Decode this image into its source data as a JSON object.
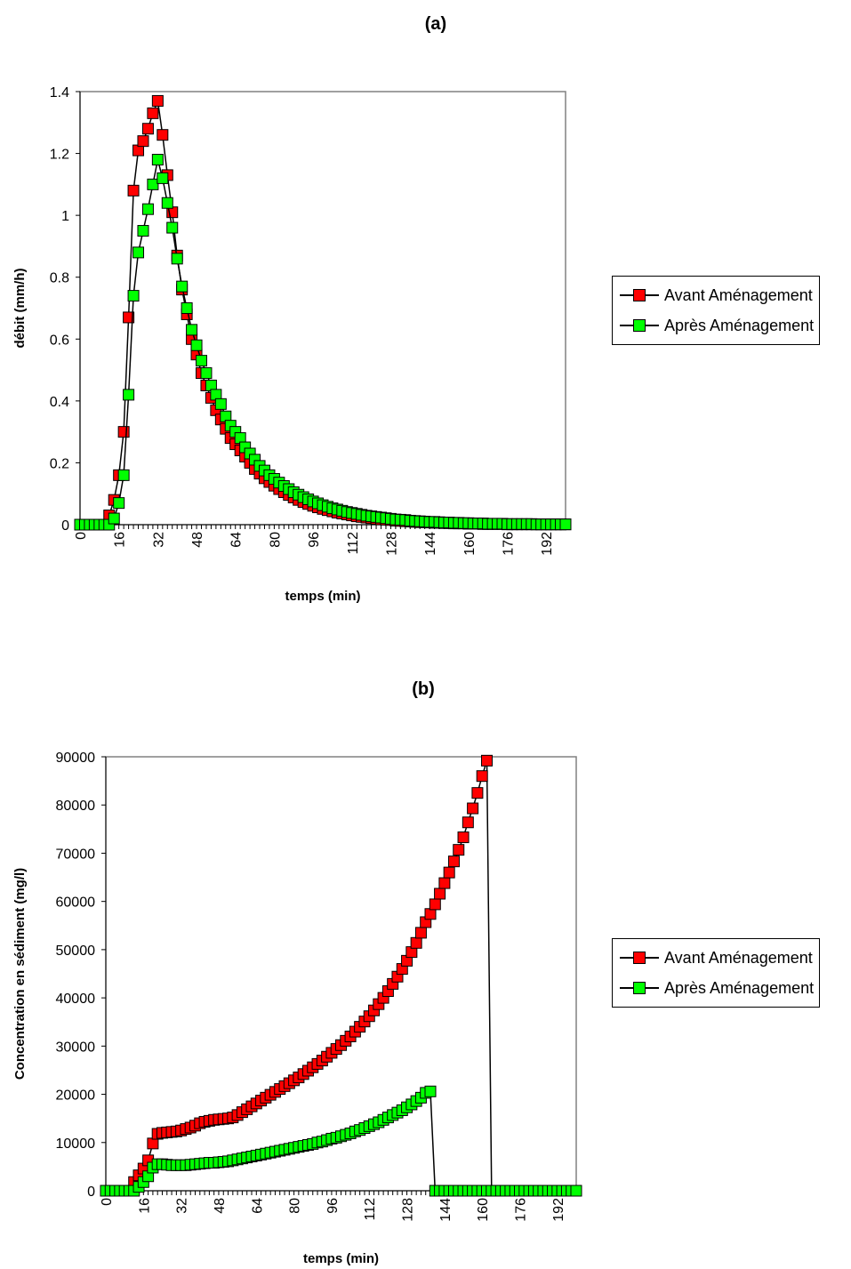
{
  "chart_data": [
    {
      "type": "line",
      "title": "(a)",
      "xlabel": "temps (min)",
      "ylabel": "débit (mm/h)",
      "xlim": [
        0,
        200
      ],
      "ylim": [
        0,
        1.4
      ],
      "xticks": [
        "0",
        "16",
        "32",
        "48",
        "64",
        "80",
        "96",
        "112",
        "128",
        "144",
        "160",
        "176",
        "192"
      ],
      "yticks": [
        "0",
        "0.2",
        "0.4",
        "0.6",
        "0.8",
        "1",
        "1.2",
        "1.4"
      ],
      "legend_position": "right",
      "x": [
        0,
        2,
        4,
        6,
        8,
        10,
        12,
        14,
        16,
        18,
        20,
        22,
        24,
        26,
        28,
        30,
        32,
        34,
        36,
        38,
        40,
        42,
        44,
        46,
        48,
        50,
        52,
        54,
        56,
        58,
        60,
        62,
        64,
        66,
        68,
        70,
        72,
        74,
        76,
        78,
        80,
        82,
        84,
        86,
        88,
        90,
        92,
        94,
        96,
        98,
        100,
        102,
        104,
        106,
        108,
        110,
        112,
        114,
        116,
        118,
        120,
        122,
        124,
        126,
        128,
        130,
        132,
        134,
        136,
        138,
        140,
        142,
        144,
        146,
        148,
        150,
        152,
        154,
        156,
        158,
        160,
        162,
        164,
        166,
        168,
        170,
        172,
        174,
        176,
        178,
        180,
        182,
        184,
        186,
        188,
        190,
        192,
        194,
        196,
        198,
        200
      ],
      "series": [
        {
          "name": "Avant Aménagement",
          "color": "#ff0000",
          "values": [
            0,
            0,
            0,
            0,
            0,
            0,
            0.03,
            0.08,
            0.16,
            0.3,
            0.67,
            1.08,
            1.21,
            1.24,
            1.28,
            1.33,
            1.37,
            1.26,
            1.13,
            1.01,
            0.87,
            0.76,
            0.68,
            0.6,
            0.55,
            0.49,
            0.45,
            0.41,
            0.37,
            0.34,
            0.31,
            0.28,
            0.26,
            0.24,
            0.22,
            0.2,
            0.18,
            0.165,
            0.15,
            0.138,
            0.126,
            0.115,
            0.105,
            0.096,
            0.088,
            0.08,
            0.073,
            0.067,
            0.061,
            0.056,
            0.051,
            0.047,
            0.043,
            0.039,
            0.036,
            0.033,
            0.03,
            0.027,
            0.025,
            0.023,
            0.021,
            0.019,
            0.017,
            0.016,
            0.015,
            0.013,
            0.012,
            0.011,
            0.01,
            0.009,
            0.008,
            0.008,
            0.007,
            0.006,
            0.006,
            0.005,
            0.005,
            0.004,
            0.004,
            0.004,
            0.003,
            0.003,
            0.003,
            0.002,
            0.002,
            0.002,
            0.002,
            0.002,
            0.001,
            0.001,
            0.001,
            0.001,
            0.001,
            0.001,
            0.001,
            0.001,
            0.001,
            0.001,
            0.001,
            0.001,
            0.001
          ]
        },
        {
          "name": "Après Aménagement",
          "color": "#00ff00",
          "values": [
            0,
            0,
            0,
            0,
            0,
            0,
            0,
            0.02,
            0.07,
            0.16,
            0.42,
            0.74,
            0.88,
            0.95,
            1.02,
            1.1,
            1.18,
            1.12,
            1.04,
            0.96,
            0.86,
            0.77,
            0.7,
            0.63,
            0.58,
            0.53,
            0.49,
            0.45,
            0.42,
            0.39,
            0.35,
            0.32,
            0.3,
            0.28,
            0.25,
            0.23,
            0.21,
            0.19,
            0.175,
            0.16,
            0.148,
            0.136,
            0.125,
            0.115,
            0.105,
            0.097,
            0.089,
            0.082,
            0.075,
            0.069,
            0.063,
            0.058,
            0.053,
            0.049,
            0.045,
            0.041,
            0.038,
            0.035,
            0.032,
            0.029,
            0.027,
            0.025,
            0.023,
            0.021,
            0.019,
            0.017,
            0.016,
            0.015,
            0.013,
            0.012,
            0.011,
            0.01,
            0.009,
            0.009,
            0.008,
            0.007,
            0.007,
            0.006,
            0.006,
            0.005,
            0.005,
            0.004,
            0.004,
            0.004,
            0.003,
            0.003,
            0.003,
            0.003,
            0.002,
            0.002,
            0.002,
            0.002,
            0.002,
            0.002,
            0.001,
            0.001,
            0.001,
            0.001,
            0.001,
            0.001,
            0.001
          ]
        }
      ]
    },
    {
      "type": "line",
      "title": "(b)",
      "xlabel": "temps (min)",
      "ylabel": "Concentration en sédiment (mg/l)",
      "xlim": [
        0,
        200
      ],
      "ylim": [
        0,
        90000
      ],
      "xticks": [
        "0",
        "16",
        "32",
        "48",
        "64",
        "80",
        "96",
        "112",
        "128",
        "144",
        "160",
        "176",
        "192"
      ],
      "yticks": [
        "0",
        "10000",
        "20000",
        "30000",
        "40000",
        "50000",
        "60000",
        "70000",
        "80000",
        "90000"
      ],
      "legend_position": "right",
      "x": [
        0,
        2,
        4,
        6,
        8,
        10,
        12,
        14,
        16,
        18,
        20,
        22,
        24,
        26,
        28,
        30,
        32,
        34,
        36,
        38,
        40,
        42,
        44,
        46,
        48,
        50,
        52,
        54,
        56,
        58,
        60,
        62,
        64,
        66,
        68,
        70,
        72,
        74,
        76,
        78,
        80,
        82,
        84,
        86,
        88,
        90,
        92,
        94,
        96,
        98,
        100,
        102,
        104,
        106,
        108,
        110,
        112,
        114,
        116,
        118,
        120,
        122,
        124,
        126,
        128,
        130,
        132,
        134,
        136,
        138,
        140,
        142,
        144,
        146,
        148,
        150,
        152,
        154,
        156,
        158,
        160,
        162,
        164,
        166,
        168,
        170,
        172,
        174,
        176,
        178,
        180,
        182,
        184,
        186,
        188,
        190,
        192,
        194,
        196,
        198,
        200
      ],
      "series": [
        {
          "name": "Avant Aménagement",
          "color": "#ff0000",
          "values": [
            0,
            0,
            0,
            0,
            0,
            0,
            1800,
            3200,
            4600,
            6300,
            9800,
            11800,
            12000,
            12100,
            12200,
            12300,
            12500,
            12800,
            13100,
            13500,
            14000,
            14300,
            14500,
            14700,
            14800,
            14900,
            15000,
            15200,
            15700,
            16300,
            16900,
            17500,
            18100,
            18700,
            19300,
            19900,
            20500,
            21100,
            21700,
            22300,
            22900,
            23500,
            24200,
            24900,
            25600,
            26300,
            27000,
            27800,
            28600,
            29400,
            30200,
            31100,
            32000,
            33000,
            34000,
            35100,
            36200,
            37400,
            38700,
            40000,
            41400,
            42900,
            44400,
            46000,
            47700,
            49500,
            51400,
            53500,
            55700,
            57400,
            59400,
            61600,
            63800,
            66000,
            68300,
            70700,
            73300,
            76400,
            79300,
            82500,
            86000,
            89200,
            0,
            0,
            0,
            0,
            0,
            0,
            0,
            0,
            0,
            0,
            0,
            0,
            0,
            0,
            0,
            0,
            0,
            0,
            0
          ]
        },
        {
          "name": "Après Aménagement",
          "color": "#00ff00",
          "values": [
            0,
            0,
            0,
            0,
            0,
            0,
            0,
            800,
            1800,
            3000,
            4800,
            5500,
            5500,
            5400,
            5300,
            5300,
            5300,
            5300,
            5400,
            5500,
            5600,
            5700,
            5800,
            5800,
            5900,
            6000,
            6100,
            6300,
            6500,
            6700,
            6900,
            7100,
            7300,
            7500,
            7700,
            7900,
            8100,
            8300,
            8500,
            8700,
            8900,
            9100,
            9300,
            9500,
            9700,
            10000,
            10200,
            10500,
            10800,
            11000,
            11300,
            11600,
            11900,
            12300,
            12600,
            13000,
            13400,
            13800,
            14200,
            14700,
            15200,
            15700,
            16200,
            16700,
            17300,
            17900,
            18600,
            19300,
            20300,
            20600,
            0,
            0,
            0,
            0,
            0,
            0,
            0,
            0,
            0,
            0,
            0,
            0,
            0,
            0,
            0,
            0,
            0,
            0,
            0,
            0,
            0,
            0,
            0,
            0,
            0,
            0,
            0,
            0,
            0,
            0,
            0
          ]
        }
      ]
    }
  ]
}
